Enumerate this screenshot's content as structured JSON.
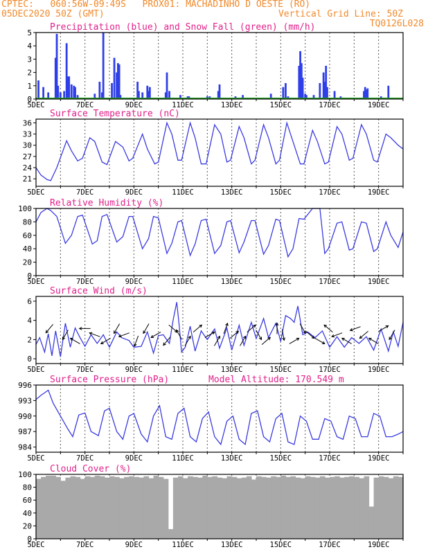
{
  "header": {
    "line1_left": "CPTEC:   060:56W-09:49S   PROX01: MACHADINHO D OESTE (RO)",
    "line2_left": "05DEC2020 50Z (GMT)",
    "line2_right": "Vertical Grid Line: 50Z",
    "line3_right": "TQ0126L028"
  },
  "colors": {
    "header": "#f08a2c",
    "title": "#e0208a",
    "line": "#3a3ae0",
    "precip": "#2f3fe8",
    "snow": "#22a022",
    "cloud": "#a9a9a9",
    "arrow": "#000000"
  },
  "chart_data": [
    {
      "id": "precip",
      "type": "bar",
      "title": "Precipitation (blue) and Snow Fall (green) (mm/h)",
      "ylim": [
        0,
        5
      ],
      "yticks": [
        "0",
        "1",
        "2",
        "3",
        "4",
        "5"
      ],
      "xticks": [
        "5DEC",
        "7DEC",
        "9DEC",
        "11DEC",
        "13DEC",
        "15DEC",
        "17DEC",
        "19DEC"
      ],
      "x": [
        5.1,
        5.3,
        5.5,
        5.8,
        5.85,
        5.9,
        6.0,
        6.15,
        6.25,
        6.3,
        6.35,
        6.45,
        6.55,
        6.6,
        6.7,
        7.4,
        7.6,
        7.7,
        7.75,
        8.1,
        8.2,
        8.3,
        8.35,
        8.4,
        8.45,
        9.15,
        9.2,
        9.35,
        9.55,
        9.6,
        9.65,
        10.3,
        10.35,
        10.45,
        10.9,
        11.2,
        11.25,
        12.0,
        12.1,
        12.45,
        12.5,
        13.15,
        13.45,
        14.6,
        15.1,
        15.2,
        15.3,
        15.75,
        15.8,
        15.85,
        15.9,
        16.0,
        16.05,
        16.35,
        16.6,
        16.75,
        16.8,
        16.85,
        16.9,
        17.2,
        17.45,
        18.4,
        18.45,
        18.5,
        18.55,
        19.1,
        19.4
      ],
      "values": [
        1.4,
        0.9,
        0.5,
        3.1,
        4.9,
        1.0,
        0.5,
        0.6,
        4.2,
        1.7,
        1.7,
        1.1,
        1.0,
        0.9,
        0.3,
        0.4,
        1.3,
        0.5,
        5.0,
        1.2,
        3.1,
        2.0,
        2.7,
        2.6,
        0.3,
        1.3,
        0.6,
        0.5,
        1.0,
        0.6,
        0.9,
        0.5,
        2.0,
        0.6,
        0.3,
        0.2,
        0.2,
        0.2,
        0.2,
        0.6,
        1.1,
        0.2,
        0.3,
        0.4,
        0.9,
        1.2,
        0.2,
        2.5,
        3.6,
        2.7,
        1.6,
        0.4,
        0.3,
        0.3,
        1.2,
        2.0,
        1.3,
        2.5,
        0.9,
        0.6,
        0.2,
        0.6,
        0.9,
        0.7,
        0.8,
        0.2,
        1.0
      ],
      "snow_values": [
        0
      ]
    },
    {
      "id": "temp",
      "type": "line",
      "title": "Surface Temperature (nC)",
      "ylim": [
        19,
        37
      ],
      "yticks": [
        "21",
        "24",
        "27",
        "30",
        "33",
        "36"
      ],
      "xticks": [
        "5DEC",
        "7DEC",
        "9DEC",
        "11DEC",
        "13DEC",
        "15DEC",
        "17DEC",
        "19DEC"
      ],
      "x": [
        5.0,
        5.2,
        5.45,
        5.6,
        5.85,
        6.25,
        6.45,
        6.7,
        6.9,
        7.2,
        7.4,
        7.7,
        7.9,
        8.25,
        8.55,
        8.8,
        8.95,
        9.35,
        9.55,
        9.85,
        10.0,
        10.35,
        10.55,
        10.8,
        10.95,
        11.3,
        11.5,
        11.75,
        11.95,
        12.3,
        12.55,
        12.8,
        12.95,
        13.3,
        13.5,
        13.8,
        13.95,
        14.3,
        14.5,
        14.8,
        14.95,
        15.25,
        15.5,
        15.8,
        15.95,
        16.3,
        16.5,
        16.8,
        16.95,
        17.3,
        17.5,
        17.8,
        17.95,
        18.3,
        18.5,
        18.8,
        18.95,
        19.3,
        19.5,
        19.8,
        20.0
      ],
      "values": [
        24.0,
        22.0,
        20.8,
        20.5,
        24.0,
        31.2,
        28.5,
        25.8,
        26.5,
        32.0,
        31.0,
        25.5,
        24.8,
        31.0,
        29.5,
        25.8,
        26.5,
        33.0,
        29.0,
        25.0,
        25.5,
        36.0,
        33.0,
        26.0,
        26.0,
        36.0,
        32.0,
        25.0,
        25.0,
        35.5,
        33.0,
        25.5,
        26.0,
        35.0,
        32.0,
        25.0,
        26.0,
        35.5,
        32.0,
        25.0,
        26.0,
        36.0,
        31.0,
        25.0,
        25.0,
        34.0,
        31.0,
        25.0,
        25.5,
        35.0,
        33.0,
        26.0,
        26.5,
        35.5,
        33.0,
        26.0,
        25.5,
        33.0,
        32.0,
        30.0,
        29.0
      ]
    },
    {
      "id": "rh",
      "type": "line",
      "title": "Relative Humidity (%)",
      "ylim": [
        0,
        100
      ],
      "yticks": [
        "0",
        "20",
        "40",
        "60",
        "80",
        "100"
      ],
      "xticks": [
        "5DEC",
        "7DEC",
        "9DEC",
        "11DEC",
        "13DEC",
        "15DEC",
        "17DEC",
        "19DEC"
      ],
      "x": [
        5.0,
        5.2,
        5.45,
        5.6,
        5.85,
        6.2,
        6.45,
        6.7,
        6.9,
        7.3,
        7.5,
        7.7,
        7.9,
        8.3,
        8.55,
        8.8,
        8.95,
        9.35,
        9.6,
        9.8,
        10.0,
        10.35,
        10.55,
        10.8,
        10.95,
        11.3,
        11.5,
        11.75,
        11.95,
        12.3,
        12.55,
        12.8,
        12.95,
        13.3,
        13.5,
        13.8,
        13.95,
        14.3,
        14.5,
        14.8,
        14.95,
        15.3,
        15.5,
        15.75,
        15.95,
        16.3,
        16.45,
        16.6,
        16.8,
        16.95,
        17.3,
        17.5,
        17.8,
        17.95,
        18.3,
        18.5,
        18.8,
        18.95,
        19.3,
        19.5,
        19.8,
        20.0
      ],
      "values": [
        80.0,
        94.0,
        100.0,
        97.0,
        88.0,
        48.0,
        60.0,
        88.0,
        90.0,
        47.0,
        52.0,
        88.0,
        91.0,
        50.0,
        58.0,
        88.0,
        88.0,
        40.0,
        55.0,
        88.0,
        86.0,
        33.0,
        48.0,
        80.0,
        82.0,
        30.0,
        47.0,
        82.0,
        84.0,
        33.0,
        45.0,
        80.0,
        82.0,
        34.0,
        50.0,
        82.0,
        82.0,
        32.0,
        45.0,
        84.0,
        82.0,
        28.0,
        40.0,
        85.0,
        84.0,
        100.0,
        100.0,
        100.0,
        33.0,
        40.0,
        78.0,
        80.0,
        38.0,
        40.0,
        80.0,
        78.0,
        36.0,
        40.0,
        80.0,
        60.0,
        42.0,
        65.0
      ]
    },
    {
      "id": "wind",
      "type": "line",
      "title": "Surface Wind (m/s)",
      "ylim": [
        -0.5,
        6.5
      ],
      "yticks": [
        "0",
        "2",
        "4",
        "6"
      ],
      "xticks": [
        "5DEC",
        "7DEC",
        "9DEC",
        "11DEC",
        "13DEC",
        "15DEC",
        "17DEC",
        "19DEC"
      ],
      "x": [
        5.0,
        5.15,
        5.35,
        5.5,
        5.65,
        5.8,
        6.0,
        6.2,
        6.4,
        6.6,
        6.8,
        7.0,
        7.25,
        7.5,
        7.75,
        8.0,
        8.3,
        8.5,
        8.8,
        9.0,
        9.3,
        9.55,
        9.8,
        10.0,
        10.2,
        10.45,
        10.6,
        10.75,
        10.85,
        10.95,
        11.1,
        11.3,
        11.5,
        11.75,
        12.0,
        12.3,
        12.5,
        12.8,
        13.0,
        13.3,
        13.5,
        13.8,
        14.0,
        14.3,
        14.5,
        14.8,
        15.0,
        15.2,
        15.4,
        15.55,
        15.7,
        15.9,
        16.1,
        16.4,
        16.7,
        17.0,
        17.3,
        17.6,
        17.9,
        18.2,
        18.5,
        18.8,
        19.1,
        19.4,
        19.6,
        19.8,
        20.0
      ],
      "values": [
        1.5,
        2.2,
        0.7,
        2.6,
        0.3,
        2.9,
        0.2,
        3.7,
        1.2,
        3.2,
        2.2,
        1.3,
        2.5,
        1.6,
        2.5,
        1.2,
        2.8,
        2.2,
        1.9,
        1.2,
        1.3,
        2.8,
        0.6,
        2.4,
        2.5,
        1.6,
        4.0,
        5.9,
        3.5,
        0.7,
        1.2,
        3.4,
        0.8,
        2.9,
        2.0,
        3.1,
        1.1,
        3.2,
        0.9,
        3.5,
        1.4,
        3.8,
        2.1,
        4.2,
        2.2,
        3.7,
        1.8,
        4.5,
        4.2,
        3.8,
        5.5,
        2.5,
        2.8,
        2.2,
        2.9,
        1.2,
        2.3,
        1.2,
        2.2,
        1.6,
        2.3,
        0.9,
        3.1,
        0.8,
        2.8,
        1.3,
        3.8
      ],
      "arrows": [
        {
          "x": 5.55,
          "ang": 230
        },
        {
          "x": 6.2,
          "ang": 240
        },
        {
          "x": 6.6,
          "ang": 150
        },
        {
          "x": 7.0,
          "ang": 180
        },
        {
          "x": 7.4,
          "ang": 160
        },
        {
          "x": 7.85,
          "ang": 210
        },
        {
          "x": 8.3,
          "ang": 240
        },
        {
          "x": 8.6,
          "ang": 200
        },
        {
          "x": 9.1,
          "ang": 250
        },
        {
          "x": 9.5,
          "ang": 240
        },
        {
          "x": 9.9,
          "ang": 210
        },
        {
          "x": 10.35,
          "ang": 230
        },
        {
          "x": 10.6,
          "ang": 320
        },
        {
          "x": 10.85,
          "ang": 120
        },
        {
          "x": 11.2,
          "ang": 60
        },
        {
          "x": 11.6,
          "ang": 40
        },
        {
          "x": 12.1,
          "ang": 30
        },
        {
          "x": 12.4,
          "ang": 60
        },
        {
          "x": 12.75,
          "ang": 70
        },
        {
          "x": 13.1,
          "ang": 40
        },
        {
          "x": 13.45,
          "ang": 60
        },
        {
          "x": 13.8,
          "ang": 40
        },
        {
          "x": 14.1,
          "ang": 300
        },
        {
          "x": 14.4,
          "ang": 40
        },
        {
          "x": 14.85,
          "ang": 90
        },
        {
          "x": 15.1,
          "ang": 280
        },
        {
          "x": 15.55,
          "ang": 30
        },
        {
          "x": 15.9,
          "ang": 300
        },
        {
          "x": 16.2,
          "ang": 320
        },
        {
          "x": 16.6,
          "ang": 330
        },
        {
          "x": 16.95,
          "ang": 140
        },
        {
          "x": 17.3,
          "ang": 200
        },
        {
          "x": 17.7,
          "ang": 150
        },
        {
          "x": 18.05,
          "ang": 200
        },
        {
          "x": 18.4,
          "ang": 220
        },
        {
          "x": 18.8,
          "ang": 150
        },
        {
          "x": 19.2,
          "ang": 30
        },
        {
          "x": 19.55,
          "ang": 240
        }
      ]
    },
    {
      "id": "psfc",
      "type": "line",
      "title": "Surface Pressure (hPa)",
      "subtitle": "Model Altitude: 170.549 m",
      "ylim": [
        983,
        996
      ],
      "yticks": [
        "984",
        "987",
        "990",
        "993",
        "996"
      ],
      "xticks": [
        "5DEC",
        "7DEC",
        "9DEC",
        "11DEC",
        "13DEC",
        "15DEC",
        "17DEC",
        "19DEC"
      ],
      "x": [
        5.0,
        5.2,
        5.5,
        5.7,
        6.0,
        6.3,
        6.5,
        6.75,
        7.0,
        7.25,
        7.55,
        7.8,
        8.0,
        8.3,
        8.55,
        8.8,
        9.0,
        9.3,
        9.55,
        9.8,
        10.05,
        10.3,
        10.55,
        10.8,
        11.05,
        11.3,
        11.55,
        11.8,
        12.05,
        12.3,
        12.55,
        12.8,
        13.05,
        13.3,
        13.55,
        13.8,
        14.05,
        14.3,
        14.55,
        14.8,
        15.05,
        15.3,
        15.55,
        15.8,
        16.05,
        16.3,
        16.55,
        16.8,
        17.05,
        17.3,
        17.55,
        17.8,
        18.05,
        18.3,
        18.55,
        18.8,
        19.05,
        19.3,
        19.55,
        19.8,
        20.0
      ],
      "values": [
        993.2,
        994.0,
        995.0,
        992.5,
        990.0,
        987.5,
        986.0,
        990.2,
        990.6,
        987.0,
        986.2,
        991.0,
        991.5,
        987.0,
        985.5,
        990.0,
        990.5,
        986.5,
        985.0,
        990.0,
        992.0,
        986.0,
        985.5,
        990.5,
        991.5,
        986.0,
        985.0,
        989.5,
        990.8,
        986.0,
        984.5,
        989.0,
        990.0,
        985.5,
        984.5,
        990.5,
        991.0,
        986.0,
        985.0,
        989.5,
        990.5,
        985.0,
        984.5,
        990.0,
        989.0,
        985.5,
        985.5,
        989.5,
        989.0,
        986.0,
        985.5,
        990.0,
        989.5,
        986.0,
        986.0,
        990.5,
        990.0,
        986.0,
        986.0,
        986.5,
        987.0
      ]
    },
    {
      "id": "cloud",
      "type": "bar",
      "title": "Cloud Cover (%)",
      "ylim": [
        0,
        100
      ],
      "yticks": [
        "0",
        "20",
        "40",
        "60",
        "80",
        "100"
      ],
      "xticks": [
        "5DEC",
        "7DEC",
        "9DEC",
        "11DEC",
        "13DEC",
        "15DEC",
        "17DEC",
        "19DEC"
      ],
      "x": [
        5.0,
        5.2,
        5.4,
        5.6,
        5.8,
        6.0,
        6.2,
        6.4,
        6.6,
        6.8,
        7.0,
        7.2,
        7.4,
        7.6,
        7.8,
        8.0,
        8.2,
        8.4,
        8.6,
        8.8,
        9.0,
        9.2,
        9.4,
        9.6,
        9.8,
        10.0,
        10.2,
        10.4,
        10.6,
        10.8,
        11.0,
        11.2,
        11.4,
        11.6,
        11.8,
        12.0,
        12.2,
        12.4,
        12.6,
        12.8,
        13.0,
        13.2,
        13.4,
        13.6,
        13.8,
        14.0,
        14.2,
        14.4,
        14.6,
        14.8,
        15.0,
        15.2,
        15.4,
        15.6,
        15.8,
        16.0,
        16.2,
        16.4,
        16.6,
        16.8,
        17.0,
        17.2,
        17.4,
        17.6,
        17.8,
        18.0,
        18.2,
        18.4,
        18.6,
        18.8,
        19.0,
        19.2,
        19.4,
        19.6,
        19.8
      ],
      "values": [
        93,
        96,
        98,
        98,
        96,
        90,
        95,
        97,
        96,
        93,
        97,
        96,
        98,
        97,
        95,
        97,
        96,
        94,
        96,
        97,
        96,
        95,
        97,
        94,
        98,
        96,
        93,
        15,
        95,
        97,
        94,
        97,
        96,
        95,
        98,
        96,
        97,
        95,
        94,
        97,
        96,
        94,
        95,
        97,
        92,
        97,
        96,
        95,
        97,
        96,
        98,
        96,
        97,
        95,
        94,
        97,
        96,
        95,
        97,
        95,
        96,
        97,
        95,
        96,
        97,
        96,
        94,
        97,
        50,
        95,
        97,
        96,
        94,
        97,
        96
      ]
    }
  ]
}
